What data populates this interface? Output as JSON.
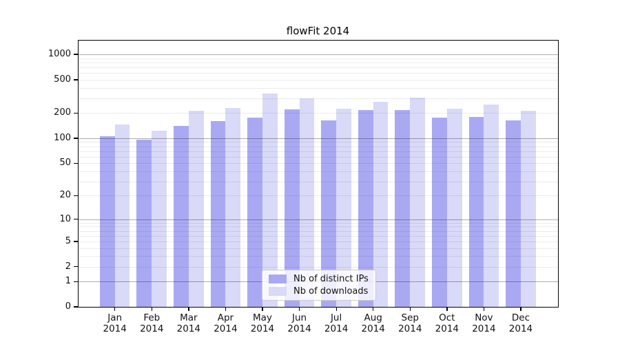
{
  "title": "flowFit 2014",
  "chart_data": {
    "type": "bar",
    "title": "flowFit 2014",
    "categories": [
      "Jan 2014",
      "Feb 2014",
      "Mar 2014",
      "Apr 2014",
      "May 2014",
      "Jun 2014",
      "Jul 2014",
      "Aug 2014",
      "Sep 2014",
      "Oct 2014",
      "Nov 2014",
      "Dec 2014"
    ],
    "series": [
      {
        "name": "Nb of distinct IPs",
        "color": "#a9a9f3",
        "values": [
          106,
          96,
          140,
          160,
          176,
          220,
          163,
          216,
          216,
          175,
          181,
          163
        ]
      },
      {
        "name": "Nb of downloads",
        "color": "#d9d9f8",
        "values": [
          145,
          122,
          213,
          230,
          342,
          300,
          227,
          271,
          305,
          227,
          251,
          211
        ]
      }
    ],
    "yscale": "log(value+1)",
    "ytick_labels": [
      "0",
      "1",
      "2",
      "5",
      "10",
      "20",
      "50",
      "100",
      "200",
      "500",
      "1000"
    ],
    "yticks": [
      0,
      1,
      2,
      5,
      10,
      20,
      50,
      100,
      200,
      500,
      1000
    ],
    "ylim": [
      0,
      1460
    ],
    "grid": true,
    "legend_position": "lower center"
  },
  "colors": {
    "background": "#ffffff",
    "spine": "#000000",
    "major_grid": "#b0b0b0",
    "minor_grid": "#ececec"
  }
}
